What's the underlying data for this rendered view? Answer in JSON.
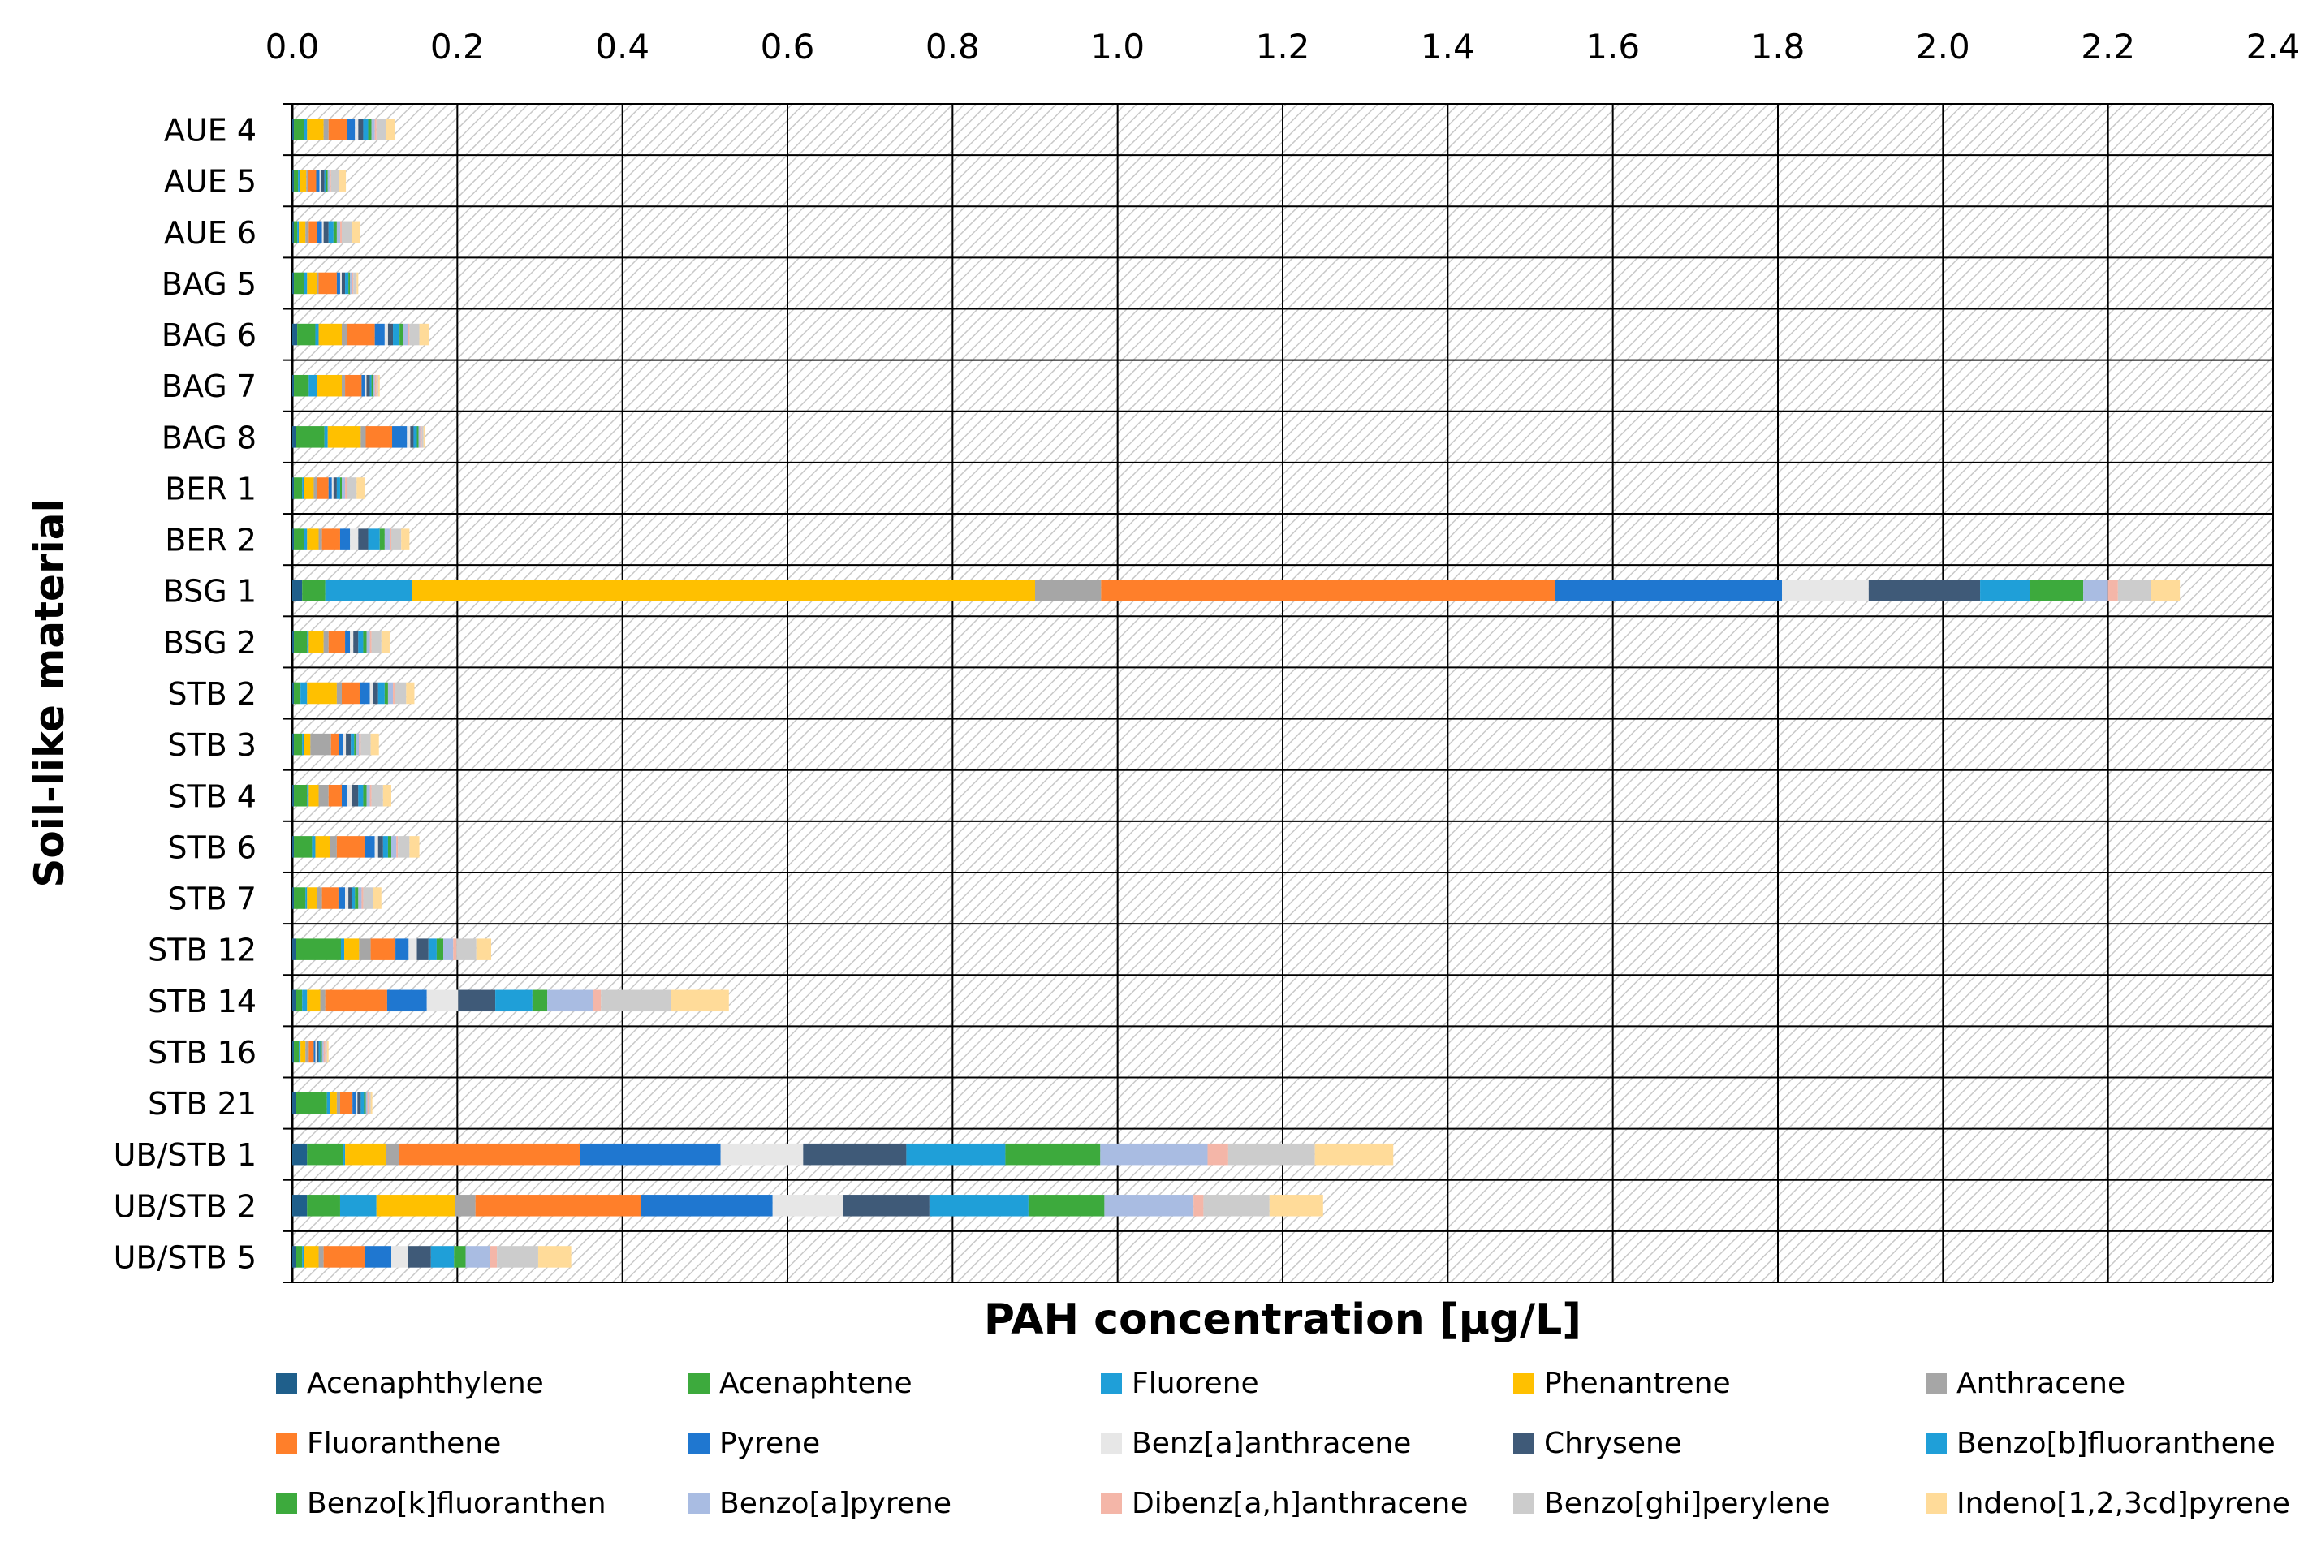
{
  "chart_data": {
    "type": "bar",
    "orientation": "horizontal",
    "stacked": true,
    "xlabel": "PAH concentration [µg/L]",
    "ylabel": "Soil-like material",
    "xlim": [
      0,
      2.4
    ],
    "x_ticks": [
      "0.0",
      "0.2",
      "0.4",
      "0.6",
      "0.8",
      "1.0",
      "1.2",
      "1.4",
      "1.6",
      "1.8",
      "2.0",
      "2.2",
      "2.4"
    ],
    "x_axis_position": "top",
    "grid": true,
    "background_pattern": "hatched",
    "legend_position": "bottom",
    "categories": [
      "AUE 4",
      "AUE 5",
      "AUE 6",
      "BAG 5",
      "BAG 6",
      "BAG 7",
      "BAG 8",
      "BER 1",
      "BER 2",
      "BSG 1",
      "BSG 2",
      "STB 2",
      "STB 3",
      "STB 4",
      "STB 6",
      "STB 7",
      "STB 12",
      "STB 14",
      "STB 16",
      "STB 21",
      "UB/STB 1",
      "UB/STB 2",
      "UB/STB 5"
    ],
    "series": [
      {
        "name": "Acenaphthylene",
        "color": "#1F5F8B",
        "values": [
          0.002,
          0.002,
          0.002,
          0.002,
          0.006,
          0.002,
          0.004,
          0.002,
          0.002,
          0.012,
          0.002,
          0.002,
          0.002,
          0.002,
          0.002,
          0.002,
          0.004,
          0.004,
          0.002,
          0.004,
          0.018,
          0.018,
          0.004
        ]
      },
      {
        "name": "Acenaphtene",
        "color": "#3DAA3D",
        "values": [
          0.012,
          0.005,
          0.004,
          0.012,
          0.022,
          0.018,
          0.035,
          0.01,
          0.012,
          0.028,
          0.016,
          0.008,
          0.01,
          0.016,
          0.022,
          0.014,
          0.055,
          0.008,
          0.006,
          0.038,
          0.044,
          0.04,
          0.008
        ]
      },
      {
        "name": "Fluorene",
        "color": "#1F9FD8",
        "values": [
          0.004,
          0.002,
          0.002,
          0.004,
          0.004,
          0.01,
          0.004,
          0.002,
          0.004,
          0.105,
          0.002,
          0.008,
          0.002,
          0.002,
          0.004,
          0.002,
          0.004,
          0.006,
          0.002,
          0.004,
          0.002,
          0.044,
          0.002
        ]
      },
      {
        "name": "Phenantrene",
        "color": "#FFC000",
        "values": [
          0.02,
          0.008,
          0.008,
          0.012,
          0.028,
          0.03,
          0.04,
          0.012,
          0.014,
          0.755,
          0.018,
          0.036,
          0.008,
          0.012,
          0.018,
          0.012,
          0.018,
          0.016,
          0.006,
          0.008,
          0.05,
          0.095,
          0.018
        ]
      },
      {
        "name": "Anthracene",
        "color": "#A6A6A6",
        "values": [
          0.006,
          0.002,
          0.004,
          0.002,
          0.006,
          0.004,
          0.006,
          0.004,
          0.004,
          0.08,
          0.006,
          0.006,
          0.025,
          0.012,
          0.008,
          0.006,
          0.014,
          0.006,
          0.004,
          0.004,
          0.015,
          0.025,
          0.006
        ]
      },
      {
        "name": "Fluoranthene",
        "color": "#FF7F2A",
        "values": [
          0.022,
          0.01,
          0.01,
          0.022,
          0.034,
          0.02,
          0.032,
          0.014,
          0.022,
          0.55,
          0.02,
          0.022,
          0.01,
          0.016,
          0.034,
          0.02,
          0.03,
          0.075,
          0.006,
          0.015,
          0.22,
          0.2,
          0.05
        ]
      },
      {
        "name": "Pyrene",
        "color": "#1F77D0",
        "values": [
          0.01,
          0.004,
          0.006,
          0.004,
          0.012,
          0.004,
          0.018,
          0.004,
          0.012,
          0.275,
          0.006,
          0.012,
          0.004,
          0.006,
          0.012,
          0.008,
          0.016,
          0.048,
          0.002,
          0.004,
          0.17,
          0.16,
          0.032
        ]
      },
      {
        "name": "Benz[a]anthracene",
        "color": "#E7E7E7",
        "values": [
          0.004,
          0.002,
          0.002,
          0.002,
          0.004,
          0.002,
          0.004,
          0.002,
          0.01,
          0.105,
          0.004,
          0.004,
          0.004,
          0.006,
          0.004,
          0.004,
          0.01,
          0.038,
          0.002,
          0.002,
          0.1,
          0.085,
          0.02
        ]
      },
      {
        "name": "Chrysene",
        "color": "#3F5A78",
        "values": [
          0.006,
          0.004,
          0.006,
          0.004,
          0.006,
          0.004,
          0.004,
          0.004,
          0.012,
          0.135,
          0.006,
          0.006,
          0.006,
          0.008,
          0.006,
          0.004,
          0.014,
          0.045,
          0.002,
          0.004,
          0.125,
          0.105,
          0.028
        ]
      },
      {
        "name": "Benzo[b]fluoranthene",
        "color": "#1F9FD8",
        "values": [
          0.006,
          0.002,
          0.006,
          0.004,
          0.008,
          0.002,
          0.004,
          0.004,
          0.014,
          0.06,
          0.006,
          0.008,
          0.004,
          0.006,
          0.006,
          0.004,
          0.01,
          0.045,
          0.002,
          0.004,
          0.12,
          0.12,
          0.028
        ]
      },
      {
        "name": "Benzo[k]fluoranthen",
        "color": "#3DAA3D",
        "values": [
          0.004,
          0.002,
          0.004,
          0.002,
          0.004,
          0.002,
          0.002,
          0.002,
          0.006,
          0.065,
          0.004,
          0.004,
          0.002,
          0.004,
          0.004,
          0.004,
          0.008,
          0.018,
          0.002,
          0.002,
          0.115,
          0.092,
          0.014
        ]
      },
      {
        "name": "Benzo[a]pyrene",
        "color": "#A9BCE2",
        "values": [
          0.004,
          0.002,
          0.004,
          0.002,
          0.006,
          0.002,
          0.002,
          0.004,
          0.006,
          0.03,
          0.004,
          0.006,
          0.004,
          0.004,
          0.006,
          0.004,
          0.012,
          0.055,
          0.002,
          0.002,
          0.13,
          0.108,
          0.03
        ]
      },
      {
        "name": "Dibenz[a,h]anthracene",
        "color": "#F4B6A8",
        "values": [
          0.002,
          0.002,
          0.002,
          0.002,
          0.002,
          0.002,
          0.002,
          0.002,
          0.002,
          0.012,
          0.002,
          0.002,
          0.002,
          0.002,
          0.002,
          0.002,
          0.004,
          0.01,
          0.002,
          0.002,
          0.025,
          0.012,
          0.008
        ]
      },
      {
        "name": "Benzo[ghi]perylene",
        "color": "#CCCCCC",
        "values": [
          0.012,
          0.01,
          0.012,
          0.004,
          0.012,
          0.002,
          0.002,
          0.012,
          0.012,
          0.04,
          0.012,
          0.014,
          0.012,
          0.014,
          0.014,
          0.012,
          0.024,
          0.085,
          0.002,
          0.002,
          0.105,
          0.08,
          0.05
        ]
      },
      {
        "name": "Indeno[1,2,3cd]pyrene",
        "color": "#FFDB99",
        "values": [
          0.01,
          0.008,
          0.01,
          0.002,
          0.012,
          0.002,
          0.002,
          0.01,
          0.01,
          0.035,
          0.01,
          0.01,
          0.01,
          0.01,
          0.012,
          0.01,
          0.018,
          0.07,
          0.002,
          0.002,
          0.095,
          0.065,
          0.04
        ]
      }
    ]
  }
}
